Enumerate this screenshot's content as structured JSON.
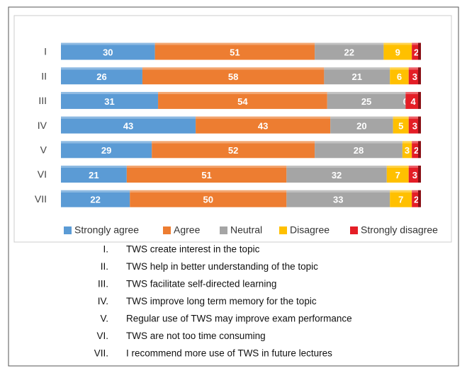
{
  "chart_data": {
    "type": "stacked-bar-horizontal",
    "categories": [
      "I",
      "II",
      "III",
      "IV",
      "V",
      "VI",
      "VII"
    ],
    "series": [
      {
        "name": "Strongly agree",
        "color": "#5b9bd5",
        "values": [
          30,
          26,
          31,
          43,
          29,
          21,
          22
        ]
      },
      {
        "name": "Agree",
        "color": "#ed7d31",
        "values": [
          51,
          58,
          54,
          43,
          52,
          51,
          50
        ]
      },
      {
        "name": "Neutral",
        "color": "#a5a5a5",
        "values": [
          22,
          21,
          25,
          20,
          28,
          32,
          33
        ]
      },
      {
        "name": "Disagree",
        "color": "#ffc000",
        "values": [
          9,
          6,
          0,
          5,
          3,
          7,
          7
        ]
      },
      {
        "name": "Strongly disagree",
        "color": "#e41e26",
        "values": [
          2,
          3,
          4,
          3,
          2,
          3,
          2
        ]
      }
    ],
    "legend": "bottom",
    "notes": [
      {
        "numeral": "I.",
        "text": "TWS create interest in the topic"
      },
      {
        "numeral": "II.",
        "text": "TWS help in better understanding of the topic"
      },
      {
        "numeral": "III.",
        "text": "TWS facilitate self-directed learning"
      },
      {
        "numeral": "IV.",
        "text": "TWS improve long term memory for the topic"
      },
      {
        "numeral": "V.",
        "text": "Regular use of TWS may improve exam performance"
      },
      {
        "numeral": "VI.",
        "text": "TWS are not too time consuming"
      },
      {
        "numeral": "VII.",
        "text": "I recommend more use of TWS in future lectures"
      }
    ]
  }
}
